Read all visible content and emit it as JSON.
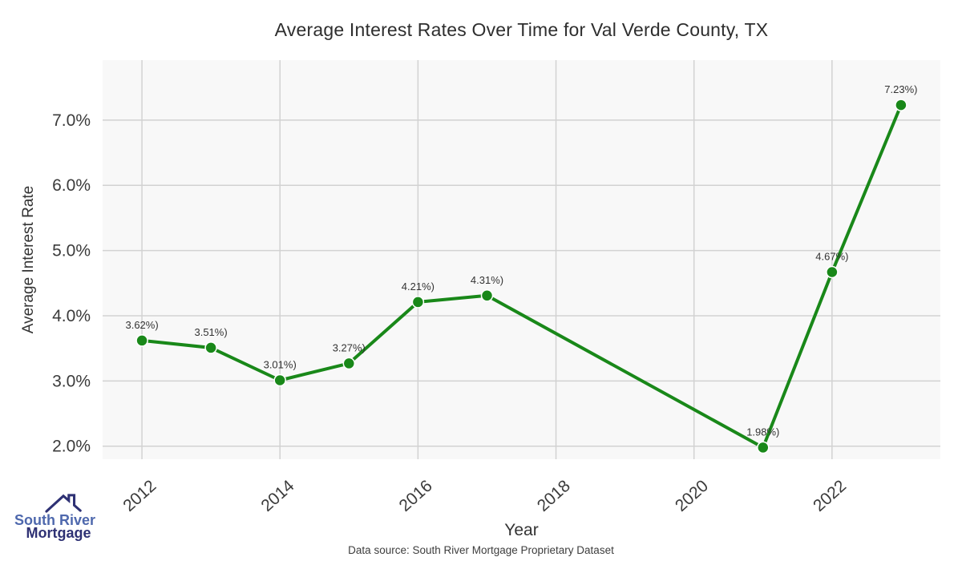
{
  "chart_data": {
    "type": "line",
    "title": "Average Interest Rates Over Time for Val Verde County, TX",
    "xlabel": "Year",
    "ylabel": "Average Interest Rate",
    "series": [
      {
        "name": "Average Interest Rate",
        "x": [
          2012,
          2013,
          2014,
          2015,
          2016,
          2017,
          2021,
          2022,
          2023
        ],
        "values": [
          3.62,
          3.51,
          3.01,
          3.27,
          4.21,
          4.31,
          1.98,
          4.67,
          7.23
        ],
        "point_labels": [
          "3.62%)",
          "3.51%)",
          "3.01%)",
          "3.27%)",
          "4.21%)",
          "4.31%)",
          "1.98%)",
          "4.67%)",
          "7.23%)"
        ]
      }
    ],
    "x_ticks": {
      "values": [
        2012,
        2014,
        2016,
        2018,
        2020,
        2022
      ],
      "labels": [
        "2012",
        "2014",
        "2016",
        "2018",
        "2020",
        "2022"
      ]
    },
    "y_ticks": {
      "values": [
        2,
        3,
        4,
        5,
        6,
        7
      ],
      "labels": [
        "2.0%",
        "3.0%",
        "4.0%",
        "5.0%",
        "6.0%",
        "7.0%"
      ]
    },
    "xlim": [
      2011.43,
      2023.57
    ],
    "ylim": [
      1.8,
      7.92
    ],
    "grid": true,
    "legend": false,
    "line_color": "#198819",
    "marker_edge_color": "#ffffff",
    "plot_background": "#f8f8f8",
    "grid_color": "#d2d2d2",
    "tick_color": "#3b3b3b",
    "point_label_color": "#333333"
  },
  "logo": {
    "icon": "house-roof-chimney-icon",
    "line1": "South River",
    "line2": "Mortgage",
    "color_line1": "#4e68ad",
    "color_line2": "#2e3174"
  },
  "footer": {
    "text": "Data source: South River Mortgage Proprietary Dataset"
  }
}
